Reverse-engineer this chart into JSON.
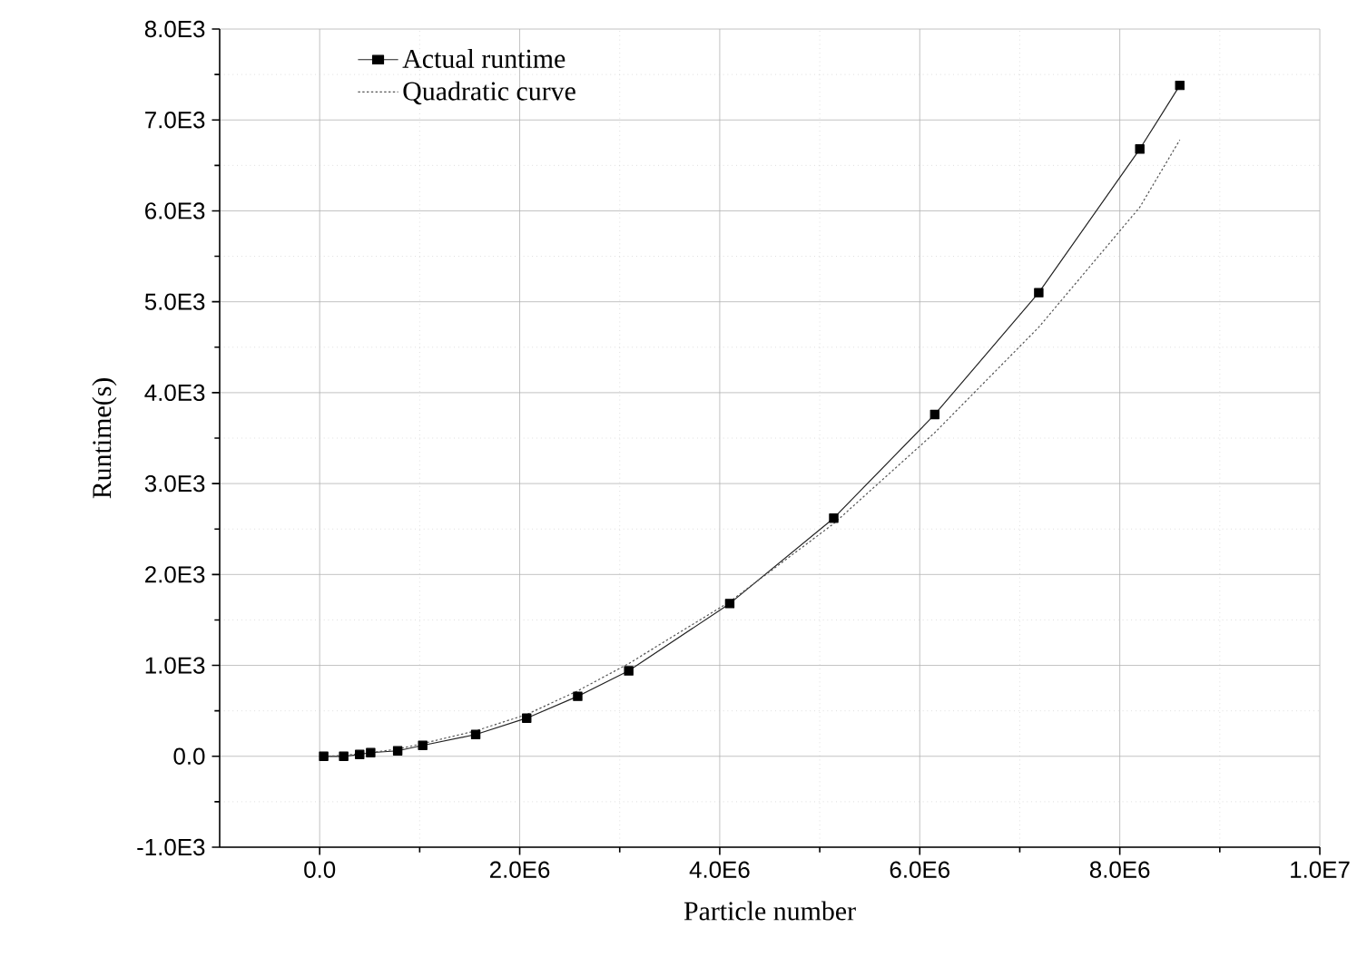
{
  "chart_data": {
    "type": "line",
    "xlabel": "Particle number",
    "ylabel": "Runtime(s)",
    "xlim": [
      -1000000,
      10000000
    ],
    "ylim": [
      -1000,
      8000
    ],
    "xticks": [
      {
        "value": 0,
        "label": "0.0"
      },
      {
        "value": 2000000,
        "label": "2.0E6"
      },
      {
        "value": 4000000,
        "label": "4.0E6"
      },
      {
        "value": 6000000,
        "label": "6.0E6"
      },
      {
        "value": 8000000,
        "label": "8.0E6"
      },
      {
        "value": 10000000,
        "label": "1.0E7"
      }
    ],
    "yticks": [
      {
        "value": -1000,
        "label": "-1.0E3"
      },
      {
        "value": 0,
        "label": "0.0"
      },
      {
        "value": 1000,
        "label": "1.0E3"
      },
      {
        "value": 2000,
        "label": "2.0E3"
      },
      {
        "value": 3000,
        "label": "3.0E3"
      },
      {
        "value": 4000,
        "label": "4.0E3"
      },
      {
        "value": 5000,
        "label": "5.0E3"
      },
      {
        "value": 6000,
        "label": "6.0E3"
      },
      {
        "value": 7000,
        "label": "7.0E3"
      },
      {
        "value": 8000,
        "label": "8.0E3"
      }
    ],
    "grid": true,
    "legend": "top left",
    "x": [
      40000,
      240000,
      400000,
      510000,
      780000,
      1030000,
      1560000,
      2070000,
      2580000,
      3090000,
      4100000,
      5140000,
      6150000,
      7190000,
      8200000,
      8600000
    ],
    "series": [
      {
        "name": "Actual runtime",
        "color": "#222222",
        "marker": "square",
        "line_style": "solid",
        "values": [
          0,
          0,
          20,
          40,
          60,
          120,
          240,
          420,
          660,
          940,
          1680,
          2620,
          3760,
          5100,
          6680,
          7380
        ]
      },
      {
        "name": "Quadratic curve",
        "color": "#555555",
        "marker": "none",
        "line_style": "dotted",
        "values": [
          0,
          10,
          30,
          40,
          80,
          140,
          280,
          460,
          720,
          1020,
          1700,
          2560,
          3560,
          4720,
          6040,
          6780
        ]
      }
    ]
  }
}
